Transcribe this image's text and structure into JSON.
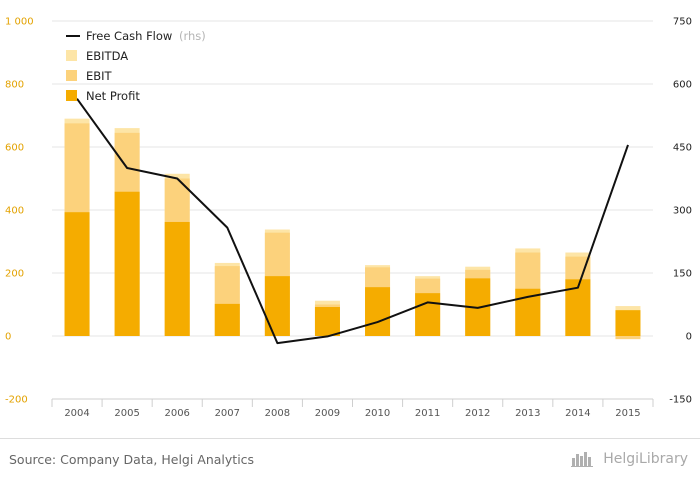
{
  "chart_data": {
    "type": "bar",
    "categories": [
      "2004",
      "2005",
      "2006",
      "2007",
      "2008",
      "2009",
      "2010",
      "2011",
      "2012",
      "2013",
      "2014",
      "2015"
    ],
    "series": [
      {
        "name": "EBITDA",
        "kind": "bar",
        "axis": "left",
        "values": [
          690,
          660,
          515,
          232,
          338,
          112,
          225,
          190,
          220,
          278,
          265,
          95
        ]
      },
      {
        "name": "EBIT",
        "kind": "bar",
        "axis": "left",
        "values": [
          675,
          645,
          500,
          222,
          328,
          100,
          218,
          182,
          210,
          265,
          252,
          -10
        ]
      },
      {
        "name": "Net Profit",
        "kind": "bar",
        "axis": "left",
        "values": [
          393,
          458,
          362,
          102,
          190,
          92,
          155,
          136,
          183,
          150,
          180,
          82
        ]
      },
      {
        "name": "Free Cash Flow",
        "note": "(rhs)",
        "kind": "line",
        "axis": "right",
        "values": [
          565,
          400,
          375,
          258,
          -17,
          -1,
          33,
          80,
          67,
          93,
          115,
          455
        ]
      }
    ],
    "left_axis": {
      "min": -200,
      "max": 1000,
      "ticks": [
        -200,
        0,
        200,
        400,
        600,
        800,
        1000
      ],
      "tick_labels": [
        "-200",
        "0",
        "200",
        "400",
        "600",
        "800",
        "1 000"
      ]
    },
    "right_axis": {
      "min": -150,
      "max": 750,
      "ticks": [
        -150,
        0,
        150,
        300,
        450,
        600,
        750
      ],
      "tick_labels": [
        "-150",
        "0",
        "150",
        "300",
        "450",
        "600",
        "750"
      ]
    },
    "grid": true,
    "legend_position": "top-left"
  },
  "colors": {
    "ebitda": "#fde5a7",
    "ebit": "#fcd27c",
    "net_profit": "#f5ac00",
    "free_cash_flow": "#111111",
    "left_axis_labels": "#e3a200"
  },
  "footer": {
    "source": "Source: Company Data, Helgi Analytics",
    "brand": "HelgiLibrary",
    "brand_icon": "city-skyline-icon"
  }
}
